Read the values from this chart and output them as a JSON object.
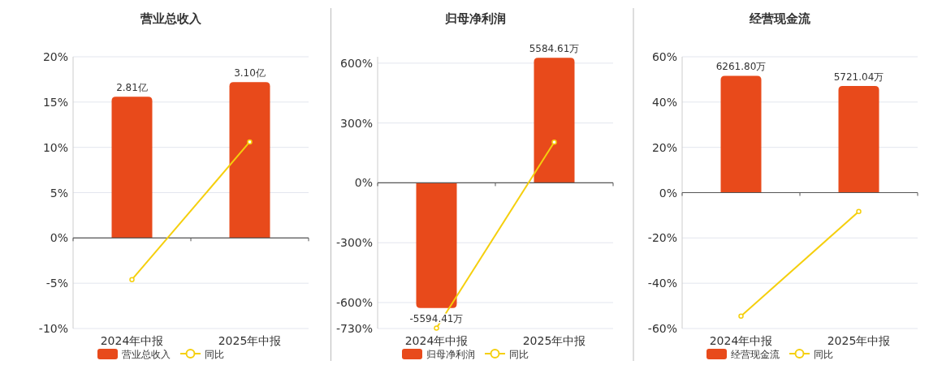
{
  "chart_data": [
    {
      "type": "bar",
      "title": "营业总收入",
      "categories": [
        "2024年中报",
        "2025年中报"
      ],
      "ylim": [
        -10,
        20
      ],
      "yticks": [
        {
          "value": -10,
          "label": "-10%"
        },
        {
          "value": -5,
          "label": "-5%"
        },
        {
          "value": 0,
          "label": "0%"
        },
        {
          "value": 5,
          "label": "5%"
        },
        {
          "value": 10,
          "label": "10%"
        },
        {
          "value": 15,
          "label": "15%"
        },
        {
          "value": 20,
          "label": "20%"
        }
      ],
      "grid": "y",
      "legend": "bottom",
      "series": [
        {
          "name": "营业总收入",
          "axis": "y2",
          "color": "#e84a1b",
          "values": [
            2.81,
            3.1
          ],
          "value_labels": [
            "2.81亿",
            "3.10亿"
          ]
        },
        {
          "name": "同比",
          "type": "line",
          "color": "#f5cf0d",
          "marker": "circle",
          "values": [
            -4.6,
            10.6
          ]
        }
      ]
    },
    {
      "type": "bar",
      "title": "归母净利润",
      "categories": [
        "2024年中报",
        "2025年中报"
      ],
      "ylim": [
        -730,
        632
      ],
      "yticks": [
        {
          "value": -730,
          "label": "-730%"
        },
        {
          "value": -600,
          "label": "-600%"
        },
        {
          "value": -300,
          "label": "-300%"
        },
        {
          "value": 0,
          "label": "0%"
        },
        {
          "value": 300,
          "label": "300%"
        },
        {
          "value": 600,
          "label": "600%"
        }
      ],
      "grid": "y",
      "legend": "bottom",
      "series": [
        {
          "name": "归母净利润",
          "axis": "y2",
          "color": "#e84a1b",
          "values": [
            -5594.41,
            5584.61
          ],
          "value_labels": [
            "-5594.41万",
            "5584.61万"
          ]
        },
        {
          "name": "同比",
          "type": "line",
          "color": "#f5cf0d",
          "marker": "circle",
          "values": [
            -728,
            204
          ]
        }
      ]
    },
    {
      "type": "bar",
      "title": "经营现金流",
      "categories": [
        "2024年中报",
        "2025年中报"
      ],
      "ylim": [
        -60,
        60
      ],
      "yticks": [
        {
          "value": -60,
          "label": "-60%"
        },
        {
          "value": -40,
          "label": "-40%"
        },
        {
          "value": -20,
          "label": "-20%"
        },
        {
          "value": 0,
          "label": "0%"
        },
        {
          "value": 20,
          "label": "20%"
        },
        {
          "value": 40,
          "label": "40%"
        },
        {
          "value": 60,
          "label": "60%"
        }
      ],
      "grid": "y",
      "legend": "bottom",
      "series": [
        {
          "name": "经营现金流",
          "axis": "y2",
          "color": "#e84a1b",
          "values": [
            6261.8,
            5721.04
          ],
          "value_labels": [
            "6261.80万",
            "5721.04万"
          ]
        },
        {
          "name": "同比",
          "type": "line",
          "color": "#f5cf0d",
          "marker": "circle",
          "values": [
            -54.5,
            -8.3
          ]
        }
      ]
    }
  ]
}
